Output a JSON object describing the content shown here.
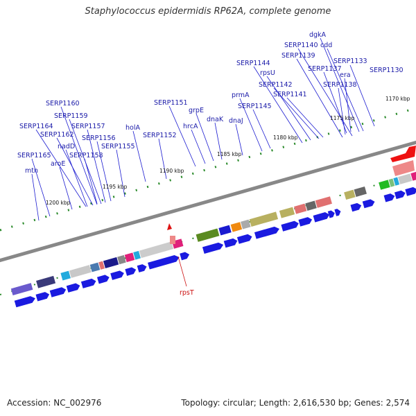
{
  "title": "Staphylococcus epidermidis RP62A, complete genome",
  "accession": "Accession: NC_002976",
  "summary": "Topology: circular; Length: 2,616,530 bp; Genes: 2,574",
  "kbp_labels": [
    "1170 kbp",
    "1175 kbp",
    "1180 kbp",
    "1185 kbp",
    "1190 kbp",
    "1195 kbp",
    "1200 kbp"
  ],
  "gene_labels": {
    "dgkA": "dgkA",
    "cdd": "cdd",
    "SERP1140": "SERP1140",
    "SERP1133": "SERP1133",
    "SERP1139": "SERP1139",
    "SERP1144": "SERP1144",
    "SERP1137": "SERP1137",
    "era": "era",
    "SERP1130": "SERP1130",
    "rpsU": "rpsU",
    "SERP1142": "SERP1142",
    "SERP1138": "SERP1138",
    "SERP1141": "SERP1141",
    "prmA": "prmA",
    "SERP1151": "SERP1151",
    "SERP1145": "SERP1145",
    "SERP1160": "SERP1160",
    "grpE": "grpE",
    "SERP1159": "SERP1159",
    "dnaK": "dnaK",
    "dnaJ": "dnaJ",
    "hrcA": "hrcA",
    "SERP1157": "SERP1157",
    "holA": "holA",
    "SERP1164": "SERP1164",
    "SERP1162": "SERP1162",
    "SERP1152": "SERP1152",
    "SERP1156": "SERP1156",
    "nadD": "nadD",
    "SERP1155": "SERP1155",
    "SERP1165": "SERP1165",
    "SERP1158": "SERP1158",
    "aroE": "aroE",
    "mtn": "mtn",
    "rpsT": "rpsT"
  }
}
